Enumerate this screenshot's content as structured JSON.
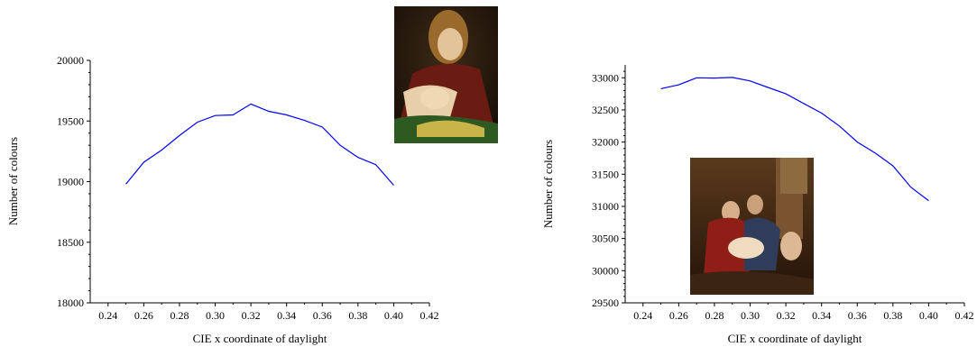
{
  "chart_data": [
    {
      "type": "line",
      "xlabel": "CIE x coordinate of daylight",
      "ylabel": "Number of colours",
      "xlim": [
        0.23,
        0.42
      ],
      "ylim": [
        18000,
        20000
      ],
      "xticks": [
        "0.24",
        "0.26",
        "0.28",
        "0.30",
        "0.32",
        "0.34",
        "0.36",
        "0.38",
        "0.40",
        "0.42"
      ],
      "yticks": [
        "18000",
        "18500",
        "19000",
        "19500",
        "20000"
      ],
      "series": [
        {
          "color": "#0000ff",
          "x": [
            0.25,
            0.26,
            0.27,
            0.28,
            0.29,
            0.3,
            0.31,
            0.32,
            0.33,
            0.34,
            0.35,
            0.36,
            0.37,
            0.38,
            0.39,
            0.4
          ],
          "y": [
            18980,
            19160,
            19260,
            19380,
            19490,
            19545,
            19550,
            19640,
            19580,
            19550,
            19505,
            19450,
            19300,
            19200,
            19140,
            18970
          ]
        }
      ]
    },
    {
      "type": "line",
      "xlabel": "CIE x coordinate of daylight",
      "ylabel": "Number of colours",
      "xlim": [
        0.23,
        0.42
      ],
      "ylim": [
        29500,
        33200
      ],
      "xticks": [
        "0.24",
        "0.26",
        "0.28",
        "0.30",
        "0.32",
        "0.34",
        "0.36",
        "0.38",
        "0.40",
        "0.42"
      ],
      "yticks": [
        "29500",
        "30000",
        "30500",
        "31000",
        "31500",
        "32000",
        "32500",
        "33000"
      ],
      "series": [
        {
          "color": "#0000ff",
          "x": [
            0.25,
            0.26,
            0.27,
            0.28,
            0.29,
            0.3,
            0.31,
            0.32,
            0.33,
            0.34,
            0.35,
            0.36,
            0.37,
            0.38,
            0.39,
            0.4
          ],
          "y": [
            32830,
            32890,
            33000,
            32995,
            33005,
            32950,
            32850,
            32750,
            32600,
            32450,
            32250,
            32000,
            31830,
            31630,
            31300,
            31090
          ]
        }
      ]
    }
  ]
}
